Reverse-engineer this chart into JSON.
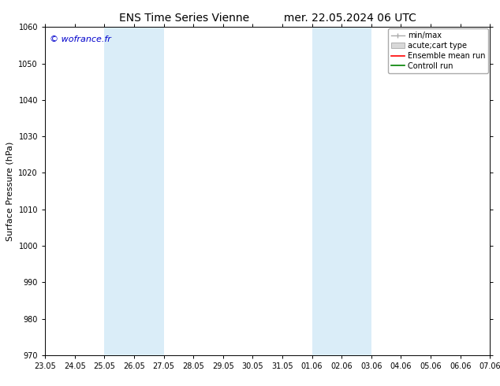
{
  "title": "ENS Time Series Vienne",
  "title2": "mer. 22.05.2024 06 UTC",
  "ylabel": "Surface Pressure (hPa)",
  "ylim": [
    970,
    1060
  ],
  "yticks": [
    970,
    980,
    990,
    1000,
    1010,
    1020,
    1030,
    1040,
    1050,
    1060
  ],
  "xtick_labels": [
    "23.05",
    "24.05",
    "25.05",
    "26.05",
    "27.05",
    "28.05",
    "29.05",
    "30.05",
    "31.05",
    "01.06",
    "02.06",
    "03.06",
    "04.06",
    "05.06",
    "06.06",
    "07.06"
  ],
  "watermark": "© wofrance.fr",
  "shaded_bands": [
    {
      "xstart": 2,
      "xend": 4,
      "color": "#daedf8"
    },
    {
      "xstart": 9,
      "xend": 11,
      "color": "#daedf8"
    }
  ],
  "background_color": "#ffffff",
  "plot_bg_color": "#ffffff",
  "legend_min_max_color": "#aaaaaa",
  "legend_rect_color": "#d8d8d8",
  "legend_mean_color": "#ff0000",
  "legend_control_color": "#008000",
  "title_fontsize": 10,
  "ylabel_fontsize": 8,
  "tick_fontsize": 7,
  "watermark_fontsize": 8,
  "watermark_color": "#0000cc",
  "legend_fontsize": 7
}
